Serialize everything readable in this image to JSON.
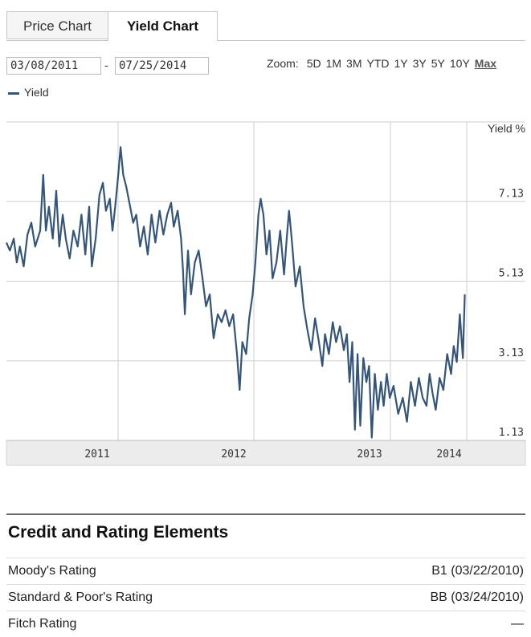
{
  "tabs": [
    {
      "label": "Price Chart",
      "active": false
    },
    {
      "label": "Yield Chart",
      "active": true
    }
  ],
  "date_range": {
    "start": "03/08/2011",
    "separator": "-",
    "end": "07/25/2014"
  },
  "zoom": {
    "label": "Zoom:",
    "options": [
      "5D",
      "1M",
      "3M",
      "YTD",
      "1Y",
      "3Y",
      "5Y",
      "10Y",
      "Max"
    ],
    "active": "Max"
  },
  "legend": {
    "label": "Yield",
    "color": "#34557a"
  },
  "chart_data": {
    "type": "line",
    "ylabel": "Yield %",
    "yticks": [
      1.13,
      3.13,
      5.13,
      7.13
    ],
    "ylim": [
      1.13,
      9.13
    ],
    "xticks": [
      "2011",
      "2012",
      "2013",
      "2014"
    ],
    "xlim": [
      "2010-10-01",
      "2014-01-15"
    ],
    "grid": true,
    "series": [
      {
        "name": "Yield",
        "color": "#34557a",
        "points": [
          [
            "2010-10-01",
            6.1
          ],
          [
            "2010-10-10",
            5.9
          ],
          [
            "2010-10-20",
            6.2
          ],
          [
            "2010-10-28",
            5.6
          ],
          [
            "2010-11-05",
            6.0
          ],
          [
            "2010-11-15",
            5.5
          ],
          [
            "2010-11-25",
            6.3
          ],
          [
            "2010-12-05",
            6.6
          ],
          [
            "2010-12-15",
            6.0
          ],
          [
            "2010-12-28",
            6.4
          ],
          [
            "2011-01-05",
            7.8
          ],
          [
            "2011-01-12",
            6.4
          ],
          [
            "2011-01-20",
            7.0
          ],
          [
            "2011-01-30",
            6.2
          ],
          [
            "2011-02-08",
            7.4
          ],
          [
            "2011-02-16",
            6.0
          ],
          [
            "2011-02-25",
            6.8
          ],
          [
            "2011-03-05",
            6.2
          ],
          [
            "2011-03-15",
            5.7
          ],
          [
            "2011-03-25",
            6.4
          ],
          [
            "2011-04-05",
            6.0
          ],
          [
            "2011-04-15",
            6.8
          ],
          [
            "2011-04-25",
            5.8
          ],
          [
            "2011-05-05",
            7.0
          ],
          [
            "2011-05-12",
            5.5
          ],
          [
            "2011-05-22",
            6.2
          ],
          [
            "2011-06-01",
            7.3
          ],
          [
            "2011-06-10",
            7.6
          ],
          [
            "2011-06-18",
            6.9
          ],
          [
            "2011-06-28",
            7.2
          ],
          [
            "2011-07-05",
            6.4
          ],
          [
            "2011-07-12",
            7.0
          ],
          [
            "2011-07-20",
            7.8
          ],
          [
            "2011-07-26",
            8.5
          ],
          [
            "2011-08-02",
            7.8
          ],
          [
            "2011-08-10",
            7.5
          ],
          [
            "2011-08-20",
            7.0
          ],
          [
            "2011-08-28",
            6.6
          ],
          [
            "2011-09-05",
            6.8
          ],
          [
            "2011-09-15",
            6.0
          ],
          [
            "2011-09-25",
            6.5
          ],
          [
            "2011-10-05",
            5.8
          ],
          [
            "2011-10-15",
            6.8
          ],
          [
            "2011-10-25",
            6.1
          ],
          [
            "2011-11-05",
            6.9
          ],
          [
            "2011-11-15",
            6.3
          ],
          [
            "2011-11-25",
            6.8
          ],
          [
            "2011-12-05",
            7.1
          ],
          [
            "2011-12-12",
            6.5
          ],
          [
            "2011-12-22",
            6.9
          ],
          [
            "2011-12-31",
            6.2
          ],
          [
            "2012-01-05",
            5.4
          ],
          [
            "2012-01-10",
            4.3
          ],
          [
            "2012-01-18",
            5.9
          ],
          [
            "2012-01-26",
            4.8
          ],
          [
            "2012-02-05",
            5.6
          ],
          [
            "2012-02-15",
            5.9
          ],
          [
            "2012-02-25",
            5.2
          ],
          [
            "2012-03-05",
            4.5
          ],
          [
            "2012-03-15",
            4.8
          ],
          [
            "2012-03-25",
            3.7
          ],
          [
            "2012-04-05",
            4.3
          ],
          [
            "2012-04-15",
            4.1
          ],
          [
            "2012-04-25",
            4.4
          ],
          [
            "2012-05-05",
            4.0
          ],
          [
            "2012-05-15",
            4.3
          ],
          [
            "2012-05-25",
            3.3
          ],
          [
            "2012-06-01",
            2.4
          ],
          [
            "2012-06-08",
            3.6
          ],
          [
            "2012-06-18",
            3.3
          ],
          [
            "2012-06-26",
            4.2
          ],
          [
            "2012-07-05",
            4.8
          ],
          [
            "2012-07-12",
            5.6
          ],
          [
            "2012-07-20",
            6.8
          ],
          [
            "2012-07-26",
            7.2
          ],
          [
            "2012-08-02",
            6.8
          ],
          [
            "2012-08-10",
            5.8
          ],
          [
            "2012-08-18",
            6.4
          ],
          [
            "2012-08-26",
            5.2
          ],
          [
            "2012-09-05",
            5.6
          ],
          [
            "2012-09-15",
            6.4
          ],
          [
            "2012-09-25",
            5.3
          ],
          [
            "2012-10-02",
            6.2
          ],
          [
            "2012-10-08",
            6.9
          ],
          [
            "2012-10-15",
            6.2
          ],
          [
            "2012-10-25",
            5.0
          ],
          [
            "2012-11-05",
            5.5
          ],
          [
            "2012-11-15",
            4.5
          ],
          [
            "2012-11-25",
            3.9
          ],
          [
            "2012-12-05",
            3.4
          ],
          [
            "2012-12-15",
            4.2
          ],
          [
            "2012-12-25",
            3.6
          ],
          [
            "2013-01-03",
            3.0
          ],
          [
            "2013-01-10",
            3.8
          ],
          [
            "2013-01-20",
            3.3
          ],
          [
            "2013-01-30",
            4.1
          ],
          [
            "2013-02-08",
            3.6
          ],
          [
            "2013-02-18",
            4.0
          ],
          [
            "2013-02-28",
            3.4
          ],
          [
            "2013-03-08",
            3.8
          ],
          [
            "2013-03-15",
            2.6
          ],
          [
            "2013-03-22",
            3.6
          ],
          [
            "2013-03-29",
            1.4
          ],
          [
            "2013-04-05",
            3.3
          ],
          [
            "2013-04-12",
            1.5
          ],
          [
            "2013-04-20",
            3.2
          ],
          [
            "2013-04-28",
            2.6
          ],
          [
            "2013-05-05",
            3.0
          ],
          [
            "2013-05-12",
            1.2
          ],
          [
            "2013-05-20",
            2.8
          ],
          [
            "2013-05-28",
            1.9
          ],
          [
            "2013-06-05",
            2.6
          ],
          [
            "2013-06-12",
            2.0
          ],
          [
            "2013-06-20",
            2.8
          ],
          [
            "2013-06-28",
            2.2
          ],
          [
            "2013-07-08",
            2.5
          ],
          [
            "2013-07-20",
            1.8
          ],
          [
            "2013-08-01",
            2.2
          ],
          [
            "2013-08-12",
            1.6
          ],
          [
            "2013-08-22",
            2.6
          ],
          [
            "2013-09-02",
            2.0
          ],
          [
            "2013-09-12",
            2.7
          ],
          [
            "2013-09-22",
            2.2
          ],
          [
            "2013-10-02",
            2.0
          ],
          [
            "2013-10-10",
            2.8
          ],
          [
            "2013-10-18",
            2.3
          ],
          [
            "2013-10-26",
            1.9
          ],
          [
            "2013-11-05",
            2.7
          ],
          [
            "2013-11-15",
            2.4
          ],
          [
            "2013-11-25",
            3.3
          ],
          [
            "2013-12-05",
            2.8
          ],
          [
            "2013-12-12",
            3.5
          ],
          [
            "2013-12-20",
            3.1
          ],
          [
            "2013-12-28",
            4.3
          ],
          [
            "2014-01-05",
            3.2
          ],
          [
            "2014-01-10",
            4.8
          ]
        ]
      }
    ]
  },
  "credit": {
    "title": "Credit and Rating Elements",
    "rows": [
      {
        "label": "Moody's Rating",
        "value": "B1 (03/22/2010)"
      },
      {
        "label": "Standard & Poor's Rating",
        "value": "BB (03/24/2010)"
      },
      {
        "label": "Fitch Rating",
        "value": "—"
      }
    ]
  }
}
